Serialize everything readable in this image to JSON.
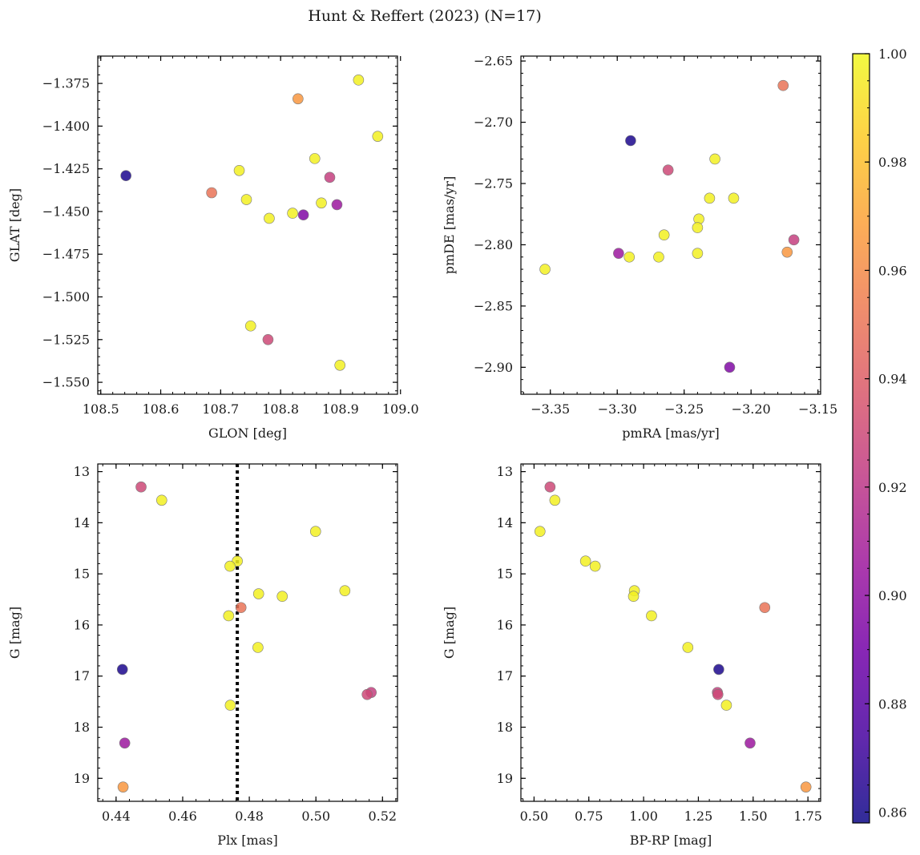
{
  "figure": {
    "suptitle": "Hunt & Reffert (2023) (N=17)"
  },
  "colorbar": {
    "min": 0.858,
    "max": 1.0,
    "ticks": [
      "0.86",
      "0.88",
      "0.90",
      "0.92",
      "0.94",
      "0.96",
      "0.98",
      "1.00"
    ],
    "tick_values": [
      0.86,
      0.88,
      0.9,
      0.92,
      0.94,
      0.96,
      0.98,
      1.0
    ],
    "colormap": "plasma",
    "stops": [
      "#0d0887",
      "#46039f",
      "#7201a8",
      "#9c179e",
      "#bd3786",
      "#d8576b",
      "#ed7953",
      "#fb9f3a",
      "#fdca26",
      "#f0f921"
    ]
  },
  "chart_data": [
    {
      "type": "scatter",
      "name": "position",
      "xlabel": "GLON [deg]",
      "ylabel": "GLAT [deg]",
      "xlim": [
        108.495,
        108.995
      ],
      "ylim": [
        -1.557,
        -1.359
      ],
      "y_inverted": false,
      "xticks": [
        108.5,
        108.6,
        108.7,
        108.8,
        108.9,
        109.0
      ],
      "xtick_labels": [
        "108.5",
        "108.6",
        "108.7",
        "108.8",
        "108.9",
        "109.0"
      ],
      "yticks": [
        -1.375,
        -1.4,
        -1.425,
        -1.45,
        -1.475,
        -1.5,
        -1.525,
        -1.55
      ],
      "ytick_labels": [
        "−1.375",
        "−1.400",
        "−1.425",
        "−1.450",
        "−1.475",
        "−1.500",
        "−1.525",
        "−1.550"
      ],
      "points": [
        {
          "x": 108.93,
          "y": -1.373,
          "c": 0.997
        },
        {
          "x": 108.829,
          "y": -1.384,
          "c": 0.965
        },
        {
          "x": 108.962,
          "y": -1.406,
          "c": 0.997
        },
        {
          "x": 108.857,
          "y": -1.419,
          "c": 0.997
        },
        {
          "x": 108.542,
          "y": -1.429,
          "c": 0.862
        },
        {
          "x": 108.731,
          "y": -1.426,
          "c": 0.997
        },
        {
          "x": 108.882,
          "y": -1.43,
          "c": 0.925
        },
        {
          "x": 108.685,
          "y": -1.439,
          "c": 0.95
        },
        {
          "x": 108.743,
          "y": -1.443,
          "c": 0.997
        },
        {
          "x": 108.868,
          "y": -1.445,
          "c": 0.997
        },
        {
          "x": 108.894,
          "y": -1.446,
          "c": 0.905
        },
        {
          "x": 108.82,
          "y": -1.451,
          "c": 0.997
        },
        {
          "x": 108.838,
          "y": -1.452,
          "c": 0.895
        },
        {
          "x": 108.781,
          "y": -1.454,
          "c": 0.997
        },
        {
          "x": 108.75,
          "y": -1.517,
          "c": 0.997
        },
        {
          "x": 108.779,
          "y": -1.525,
          "c": 0.93
        },
        {
          "x": 108.899,
          "y": -1.54,
          "c": 0.997
        }
      ]
    },
    {
      "type": "scatter",
      "name": "proper-motion",
      "xlabel": "pmRA [mas/yr]",
      "ylabel": "pmDE [mas/yr]",
      "xlim": [
        -3.372,
        -3.148
      ],
      "ylim": [
        -2.922,
        -2.646
      ],
      "y_inverted": false,
      "xticks": [
        -3.35,
        -3.3,
        -3.25,
        -3.2,
        -3.15
      ],
      "xtick_labels": [
        "−3.35",
        "−3.30",
        "−3.25",
        "−3.20",
        "−3.15"
      ],
      "yticks": [
        -2.65,
        -2.7,
        -2.75,
        -2.8,
        -2.85,
        -2.9
      ],
      "ytick_labels": [
        "−2.65",
        "−2.70",
        "−2.75",
        "−2.80",
        "−2.85",
        "−2.90"
      ],
      "points": [
        {
          "x": -3.176,
          "y": -2.67,
          "c": 0.95
        },
        {
          "x": -3.29,
          "y": -2.715,
          "c": 0.862
        },
        {
          "x": -3.227,
          "y": -2.73,
          "c": 0.997
        },
        {
          "x": -3.262,
          "y": -2.739,
          "c": 0.93
        },
        {
          "x": -3.231,
          "y": -2.762,
          "c": 0.997
        },
        {
          "x": -3.213,
          "y": -2.762,
          "c": 0.997
        },
        {
          "x": -3.239,
          "y": -2.779,
          "c": 0.997
        },
        {
          "x": -3.24,
          "y": -2.786,
          "c": 0.997
        },
        {
          "x": -3.265,
          "y": -2.792,
          "c": 0.997
        },
        {
          "x": -3.168,
          "y": -2.796,
          "c": 0.925
        },
        {
          "x": -3.173,
          "y": -2.806,
          "c": 0.965
        },
        {
          "x": -3.299,
          "y": -2.807,
          "c": 0.905
        },
        {
          "x": -3.24,
          "y": -2.807,
          "c": 0.997
        },
        {
          "x": -3.291,
          "y": -2.81,
          "c": 0.997
        },
        {
          "x": -3.269,
          "y": -2.81,
          "c": 0.997
        },
        {
          "x": -3.354,
          "y": -2.82,
          "c": 0.997
        },
        {
          "x": -3.216,
          "y": -2.9,
          "c": 0.895
        }
      ]
    },
    {
      "type": "scatter",
      "name": "parallax-magnitude",
      "xlabel": "Plx [mas]",
      "ylabel": "G [mag]",
      "xlim": [
        0.4345,
        0.5245
      ],
      "ylim": [
        19.45,
        12.85
      ],
      "y_inverted": true,
      "xticks": [
        0.44,
        0.46,
        0.48,
        0.5,
        0.52
      ],
      "xtick_labels": [
        "0.44",
        "0.46",
        "0.48",
        "0.50",
        "0.52"
      ],
      "yticks": [
        13,
        14,
        15,
        16,
        17,
        18,
        19
      ],
      "ytick_labels": [
        "13",
        "14",
        "15",
        "16",
        "17",
        "18",
        "19"
      ],
      "vline": {
        "x": 0.4764,
        "style": "dotted"
      },
      "points": [
        {
          "x": 0.4475,
          "y": 13.3,
          "c": 0.93
        },
        {
          "x": 0.4537,
          "y": 13.56,
          "c": 0.997
        },
        {
          "x": 0.4999,
          "y": 14.17,
          "c": 0.997
        },
        {
          "x": 0.4764,
          "y": 14.75,
          "c": 0.997
        },
        {
          "x": 0.4742,
          "y": 14.85,
          "c": 0.997
        },
        {
          "x": 0.5087,
          "y": 15.33,
          "c": 0.997
        },
        {
          "x": 0.4828,
          "y": 15.39,
          "c": 0.997
        },
        {
          "x": 0.4899,
          "y": 15.44,
          "c": 0.997
        },
        {
          "x": 0.4775,
          "y": 15.66,
          "c": 0.95
        },
        {
          "x": 0.4738,
          "y": 15.82,
          "c": 0.997
        },
        {
          "x": 0.4826,
          "y": 16.44,
          "c": 0.997
        },
        {
          "x": 0.4419,
          "y": 16.87,
          "c": 0.862
        },
        {
          "x": 0.5166,
          "y": 17.32,
          "c": 0.925
        },
        {
          "x": 0.5154,
          "y": 17.36,
          "c": 0.93
        },
        {
          "x": 0.4743,
          "y": 17.57,
          "c": 0.997
        },
        {
          "x": 0.4426,
          "y": 18.31,
          "c": 0.905
        },
        {
          "x": 0.4421,
          "y": 19.17,
          "c": 0.965
        }
      ]
    },
    {
      "type": "scatter",
      "name": "color-magnitude",
      "xlabel": "BP-RP [mag]",
      "ylabel": "G [mag]",
      "xlim": [
        0.44,
        1.808
      ],
      "ylim": [
        19.45,
        12.85
      ],
      "y_inverted": true,
      "xticks": [
        0.5,
        0.75,
        1.0,
        1.25,
        1.5,
        1.75
      ],
      "xtick_labels": [
        "0.50",
        "0.75",
        "1.00",
        "1.25",
        "1.50",
        "1.75"
      ],
      "yticks": [
        13,
        14,
        15,
        16,
        17,
        18,
        19
      ],
      "ytick_labels": [
        "13",
        "14",
        "15",
        "16",
        "17",
        "18",
        "19"
      ],
      "points": [
        {
          "x": 0.573,
          "y": 13.3,
          "c": 0.93
        },
        {
          "x": 0.595,
          "y": 13.56,
          "c": 0.997
        },
        {
          "x": 0.527,
          "y": 14.17,
          "c": 0.997
        },
        {
          "x": 0.735,
          "y": 14.75,
          "c": 0.997
        },
        {
          "x": 0.779,
          "y": 14.85,
          "c": 0.997
        },
        {
          "x": 0.958,
          "y": 15.33,
          "c": 0.997
        },
        {
          "x": 0.954,
          "y": 15.44,
          "c": 0.997
        },
        {
          "x": 1.553,
          "y": 15.66,
          "c": 0.95
        },
        {
          "x": 1.036,
          "y": 15.82,
          "c": 0.997
        },
        {
          "x": 1.202,
          "y": 16.44,
          "c": 0.997
        },
        {
          "x": 1.343,
          "y": 16.87,
          "c": 0.862
        },
        {
          "x": 1.337,
          "y": 17.32,
          "c": 0.925
        },
        {
          "x": 1.339,
          "y": 17.36,
          "c": 0.93
        },
        {
          "x": 1.378,
          "y": 17.57,
          "c": 0.997
        },
        {
          "x": 1.486,
          "y": 18.31,
          "c": 0.905
        },
        {
          "x": 1.741,
          "y": 19.17,
          "c": 0.965
        }
      ]
    }
  ]
}
